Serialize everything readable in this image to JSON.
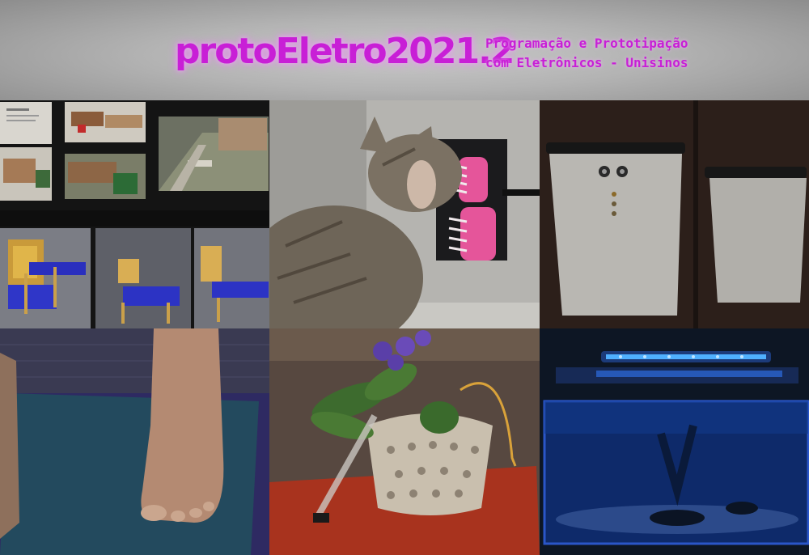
{
  "header": {
    "title": "protoEletro2021.2",
    "subtitle_line1": "Programação e Prototipação",
    "subtitle_line2": "com Eletrônicos - Unisinos",
    "accent_color": "#c81fd6"
  },
  "tiles": [
    {
      "id": "livestock-mockups"
    },
    {
      "id": "cat-brush-scratcher"
    },
    {
      "id": "trash-bin-sensor"
    },
    {
      "id": "foot-pressure-mat"
    },
    {
      "id": "self-watering-plant-pot"
    },
    {
      "id": "aquarium-led-light"
    }
  ]
}
